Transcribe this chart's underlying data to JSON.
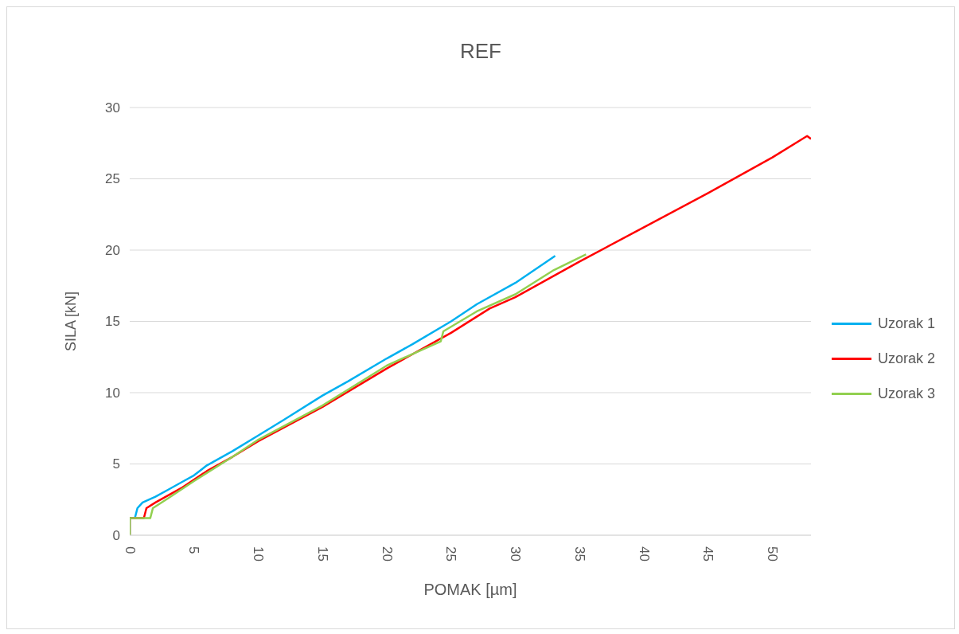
{
  "chart_data": {
    "type": "line",
    "title": "REF",
    "xlabel": "POMAK [µm]",
    "ylabel": "SILA [kN]",
    "xlim": [
      0,
      53
    ],
    "xticks": [
      0,
      5,
      10,
      15,
      20,
      25,
      30,
      35,
      40,
      45,
      50
    ],
    "ylim": [
      0,
      30
    ],
    "yticks": [
      0,
      5,
      10,
      15,
      20,
      25,
      30
    ],
    "grid": "y",
    "legend": "right",
    "marker": "none",
    "line_style": "solid",
    "series": [
      {
        "name": "Uzorak 1",
        "color": "#00b0f0",
        "x": [
          0,
          0,
          0.4,
          0.6,
          1,
          2,
          3,
          4,
          5,
          6,
          8,
          10,
          12,
          15,
          17,
          20,
          22,
          25,
          27,
          30,
          33.1
        ],
        "values": [
          0,
          1.2,
          1.2,
          1.9,
          2.3,
          2.7,
          3.2,
          3.7,
          4.2,
          4.9,
          5.9,
          7.0,
          8.1,
          9.8,
          10.8,
          12.4,
          13.4,
          15.0,
          16.2,
          17.7,
          19.6
        ]
      },
      {
        "name": "Uzorak 2",
        "color": "#ff0000",
        "x": [
          0,
          0,
          1.1,
          1.3,
          2,
          4,
          6,
          8,
          10,
          15,
          20,
          25,
          28,
          30,
          35,
          40,
          45,
          50,
          52.7,
          53
        ],
        "values": [
          0,
          1.2,
          1.2,
          1.9,
          2.3,
          3.3,
          4.5,
          5.5,
          6.6,
          9.0,
          11.7,
          14.2,
          15.9,
          16.7,
          19.2,
          21.6,
          24.0,
          26.5,
          28.0,
          27.8
        ]
      },
      {
        "name": "Uzorak 3",
        "color": "#92d050",
        "x": [
          0,
          0,
          1.6,
          1.8,
          3,
          5,
          8,
          10,
          15,
          20,
          24.2,
          24.4,
          27,
          30,
          33,
          35.5
        ],
        "values": [
          0,
          1.2,
          1.2,
          1.9,
          2.6,
          3.8,
          5.5,
          6.7,
          9.1,
          11.9,
          13.6,
          14.3,
          15.7,
          16.9,
          18.6,
          19.7
        ]
      }
    ]
  }
}
